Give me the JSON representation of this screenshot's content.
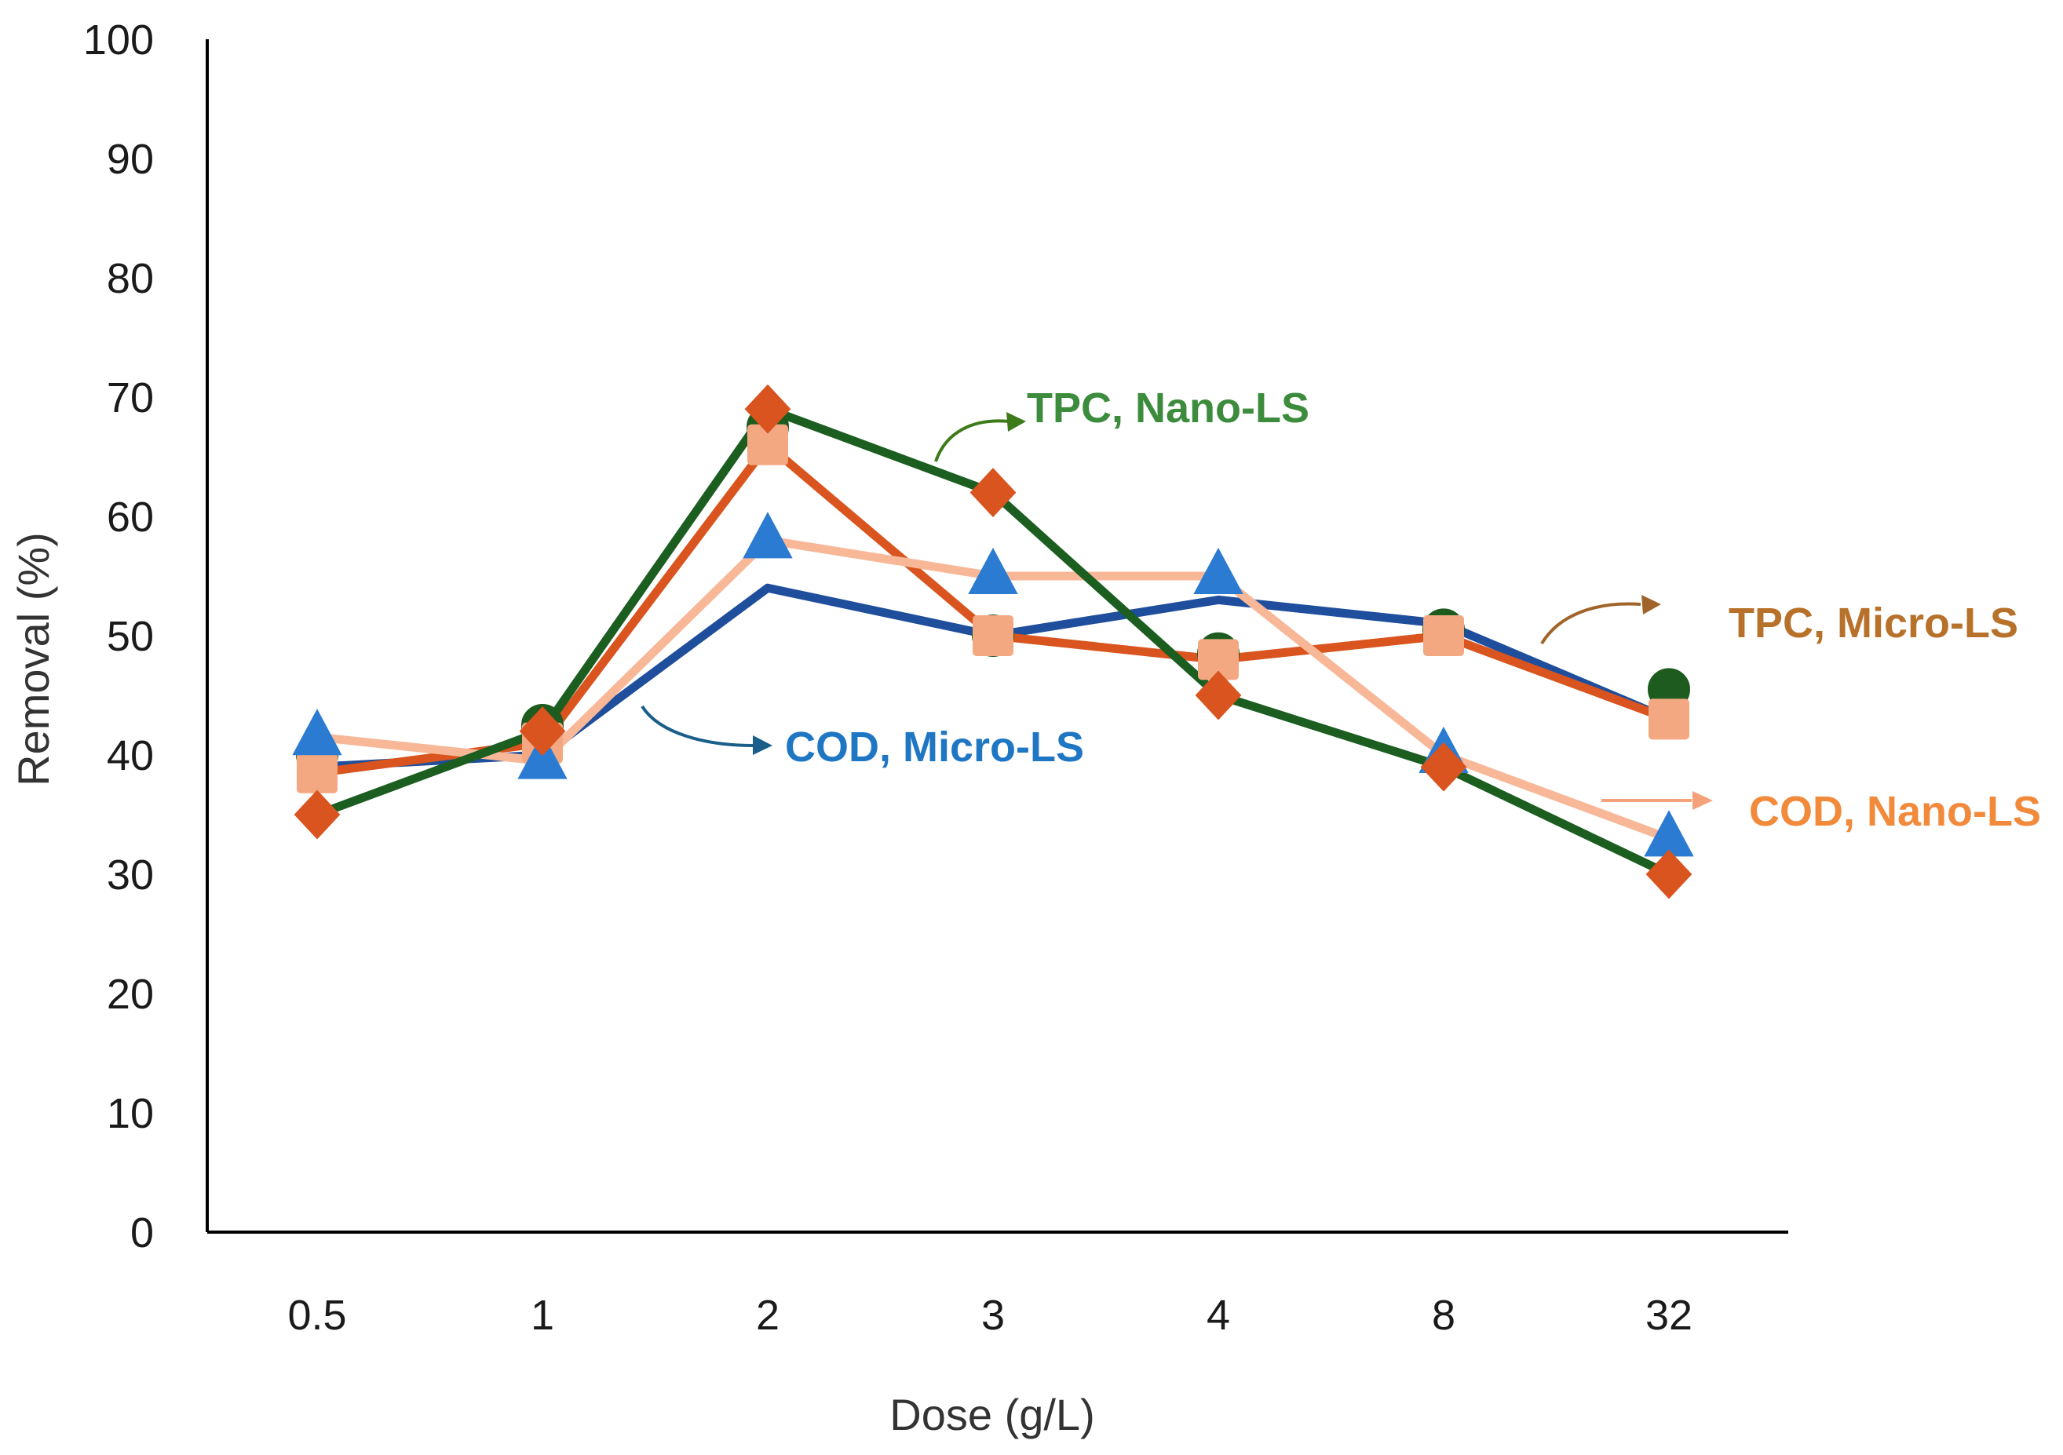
{
  "chart_data": {
    "type": "line",
    "title": "",
    "xlabel": "Dose (g/L)",
    "ylabel": "Removal (%)",
    "categories": [
      "0.5",
      "1",
      "2",
      "3",
      "4",
      "8",
      "32"
    ],
    "ylim": [
      0,
      100
    ],
    "yticks": [
      "0",
      "10",
      "20",
      "30",
      "40",
      "50",
      "60",
      "70",
      "80",
      "90",
      "100"
    ],
    "grid": false,
    "legend": "none",
    "series": [
      {
        "name": "COD, Micro-LS",
        "line_color": "#1f4e9c",
        "marker": "circle",
        "marker_color": "#2e6b2e",
        "values": [
          39,
          40,
          54,
          50,
          53,
          51,
          43
        ]
      },
      {
        "name": "TPC, Micro-LS",
        "line_color": "#d9541e",
        "marker": "square",
        "marker_color": "#f4a882",
        "values": [
          38.5,
          41,
          66,
          50,
          48,
          50,
          43
        ]
      },
      {
        "name": "COD, Nano-LS",
        "line_color": "#f8b898",
        "marker": "triangle",
        "marker_color": "#2a7bd1",
        "values": [
          41.5,
          39.5,
          58,
          55,
          55,
          40,
          33
        ]
      },
      {
        "name": "TPC, Nano-LS",
        "line_color": "#1b5e20",
        "marker": "diamond",
        "marker_color": "#d9541e",
        "values": [
          35,
          42,
          69,
          62,
          45,
          39,
          30
        ]
      }
    ],
    "extra_markers": [
      {
        "marker": "circle",
        "marker_color": "#1e5b1e",
        "values": [
          40,
          42.5,
          67.5,
          50,
          48.5,
          50.5,
          45.5
        ]
      }
    ],
    "annotations": [
      {
        "text": "TPC, Nano-LS",
        "color": "#3d8c3d",
        "arrow_color": "#3d7a1a"
      },
      {
        "text": "TPC, Micro-LS",
        "color": "#b8712a",
        "arrow_color": "#a0642a"
      },
      {
        "text": "COD, Micro-LS",
        "color": "#1f77c4",
        "arrow_color": "#1a5e8a"
      },
      {
        "text": "COD, Nano-LS",
        "color": "#f28a3c",
        "arrow_color": "#f5a17a"
      }
    ]
  }
}
